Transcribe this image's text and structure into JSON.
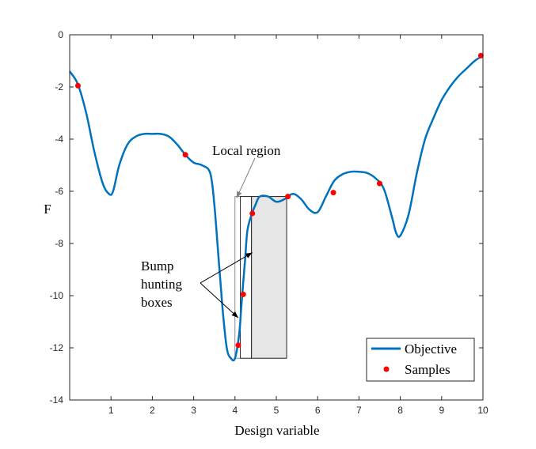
{
  "chart_data": {
    "type": "line",
    "xlabel": "Design variable",
    "ylabel": "F",
    "xlim": [
      0,
      10
    ],
    "ylim": [
      -14,
      0
    ],
    "xticks": [
      1,
      2,
      3,
      4,
      5,
      6,
      7,
      8,
      9,
      10
    ],
    "yticks": [
      0,
      -2,
      -4,
      -6,
      -8,
      -10,
      -12,
      -14
    ],
    "grid": false,
    "legend_position": "bottom-right",
    "colors": {
      "objective": "#0072bd",
      "samples": "#ff0000",
      "box_fill": "#e6e6e6"
    },
    "series": [
      {
        "name": "Objective",
        "style": "line",
        "x": [
          0,
          0.2,
          0.4,
          0.6,
          0.8,
          0.95,
          1.05,
          1.2,
          1.4,
          1.6,
          1.8,
          2.0,
          2.2,
          2.4,
          2.6,
          2.8,
          3.0,
          3.2,
          3.4,
          3.5,
          3.6,
          3.7,
          3.8,
          3.9,
          4.0,
          4.1,
          4.15,
          4.2,
          4.25,
          4.3,
          4.4,
          4.5,
          4.6,
          4.8,
          5.0,
          5.2,
          5.4,
          5.6,
          5.8,
          6.0,
          6.2,
          6.4,
          6.6,
          6.8,
          7.0,
          7.2,
          7.4,
          7.6,
          7.8,
          7.9,
          8.0,
          8.2,
          8.4,
          8.6,
          8.8,
          9.0,
          9.2,
          9.4,
          9.6,
          9.8,
          10.0
        ],
        "y": [
          -1.4,
          -1.9,
          -3.0,
          -4.5,
          -5.7,
          -6.1,
          -6.0,
          -5.0,
          -4.2,
          -3.9,
          -3.8,
          -3.8,
          -3.8,
          -3.9,
          -4.2,
          -4.6,
          -4.9,
          -5.0,
          -5.3,
          -6.5,
          -8.5,
          -10.5,
          -12.0,
          -12.4,
          -12.4,
          -11.5,
          -10.5,
          -9.5,
          -8.5,
          -7.5,
          -6.9,
          -6.5,
          -6.2,
          -6.2,
          -6.4,
          -6.3,
          -6.1,
          -6.3,
          -6.7,
          -6.8,
          -6.2,
          -5.6,
          -5.35,
          -5.25,
          -5.25,
          -5.3,
          -5.5,
          -5.9,
          -7.0,
          -7.6,
          -7.7,
          -6.9,
          -5.3,
          -4.0,
          -3.2,
          -2.5,
          -2.0,
          -1.6,
          -1.3,
          -1.0,
          -0.8
        ]
      },
      {
        "name": "Samples",
        "style": "markers",
        "x": [
          0.2,
          2.8,
          4.08,
          4.2,
          4.42,
          5.28,
          6.38,
          7.5,
          9.95
        ],
        "y": [
          -1.95,
          -4.6,
          -11.9,
          -9.95,
          -6.85,
          -6.2,
          -6.05,
          -5.7,
          -0.8
        ]
      }
    ],
    "local_region": {
      "label": "Local region",
      "x": [
        4.0,
        5.25
      ],
      "y": [
        -12.4,
        -6.2
      ]
    },
    "bump_boxes": [
      {
        "x": [
          4.13,
          4.4
        ],
        "y": [
          -12.4,
          -6.2
        ]
      },
      {
        "x": [
          4.4,
          5.25
        ],
        "y": [
          -12.4,
          -6.2
        ]
      }
    ],
    "annotations": {
      "bump_label": "Bump\nhunting\nboxes"
    }
  }
}
